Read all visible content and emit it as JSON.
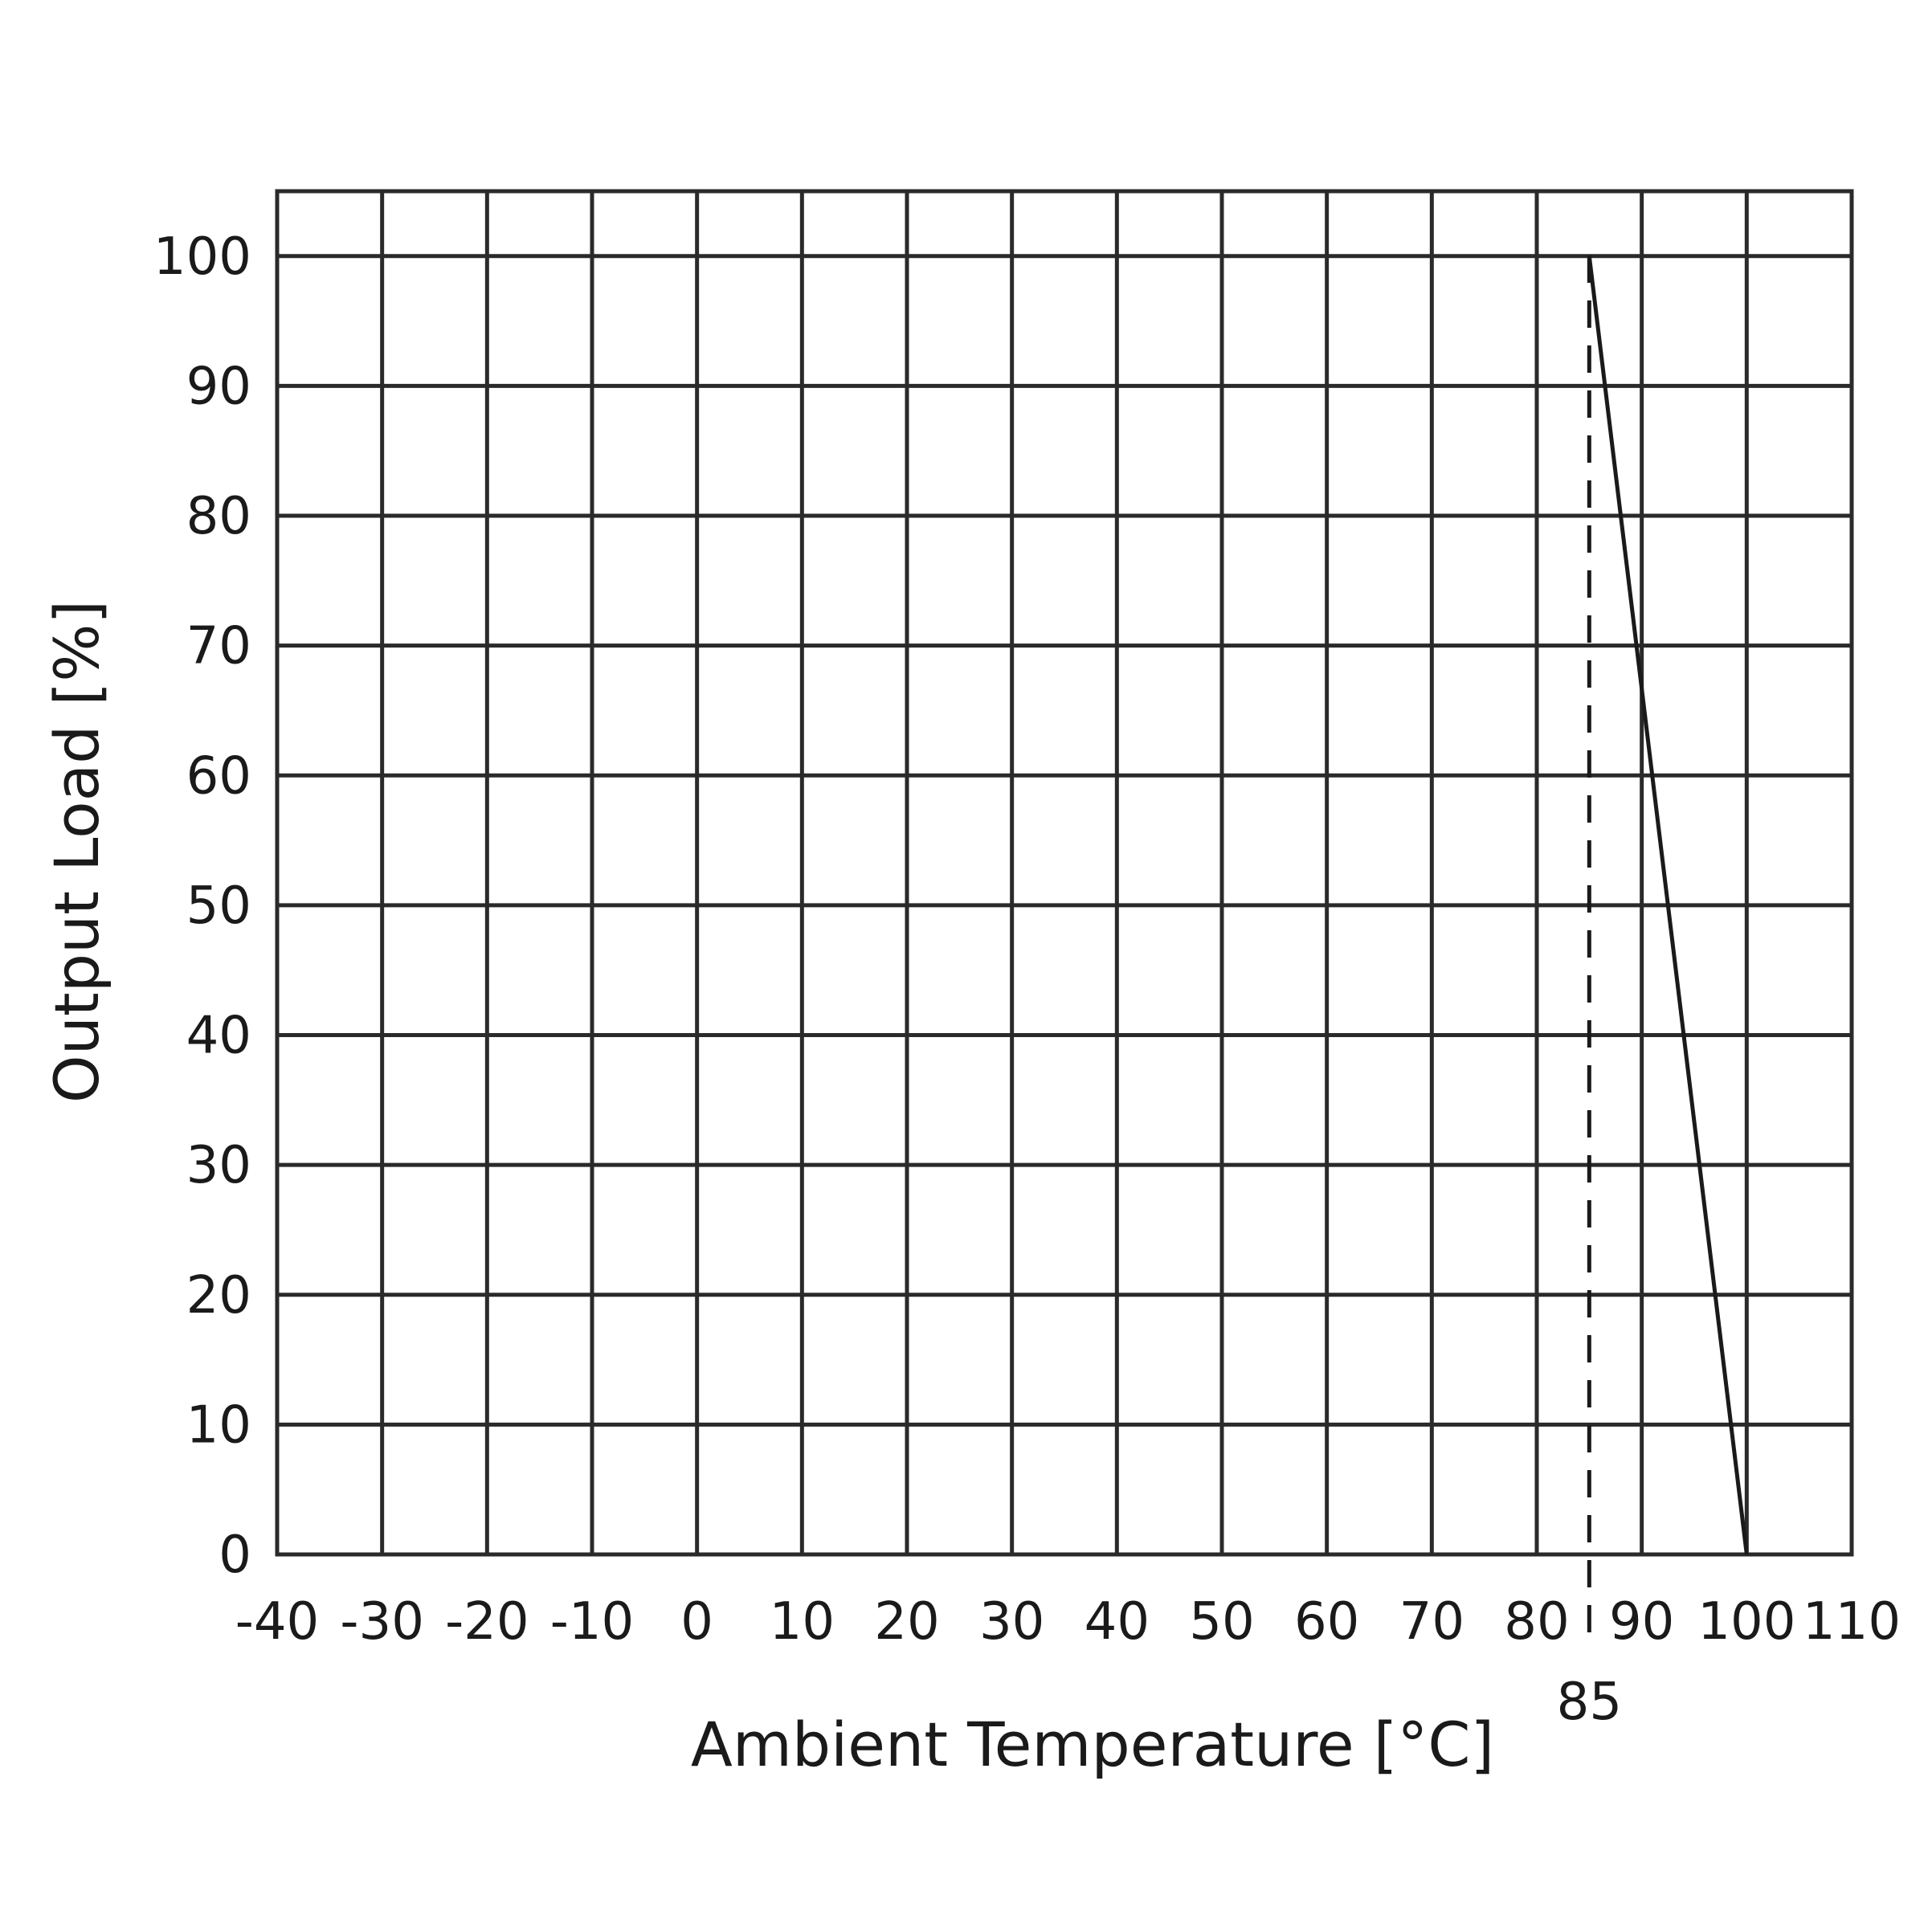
{
  "chart_data": {
    "type": "line",
    "title": "",
    "xlabel": "Ambient Temperature [°C]",
    "ylabel": "Output Load [%]",
    "xlim": [
      -40,
      110
    ],
    "ylim": [
      0,
      105
    ],
    "x_ticks": [
      -40,
      -30,
      -20,
      -10,
      0,
      10,
      20,
      30,
      40,
      50,
      60,
      70,
      80,
      90,
      100,
      110
    ],
    "x_tick_labels": [
      "-40",
      "-30",
      "-20",
      "-10",
      "0",
      "10",
      "20",
      "30",
      "40",
      "50",
      "60",
      "70",
      "80",
      "90",
      "100",
      "110"
    ],
    "y_ticks": [
      0,
      10,
      20,
      30,
      40,
      50,
      60,
      70,
      80,
      90,
      100
    ],
    "y_tick_labels": [
      "0",
      "10",
      "20",
      "30",
      "40",
      "50",
      "60",
      "70",
      "80",
      "90",
      "100"
    ],
    "grid": true,
    "series": [
      {
        "x": [
          85,
          100
        ],
        "y": [
          100,
          0
        ]
      }
    ],
    "reference_lines": [
      {
        "orientation": "vertical",
        "x": 85,
        "style": "dashed",
        "label": "85"
      }
    ],
    "colors": {
      "line": "#1a1a1a",
      "grid": "#2a2a2a",
      "background": "#ffffff"
    }
  }
}
